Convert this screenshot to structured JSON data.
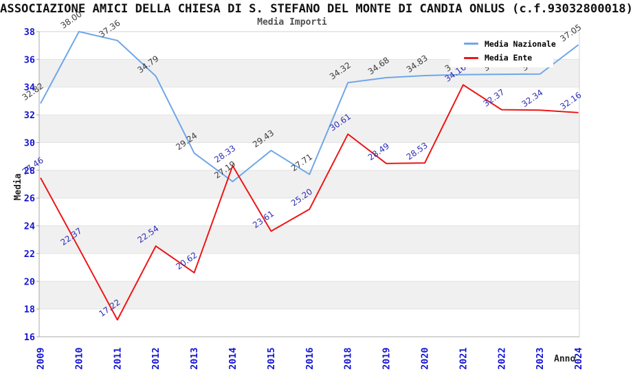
{
  "header": {
    "title": "ASSOCIAZIONE AMICI DELLA CHIESA DI S. STEFANO DEL MONTE DI CANDIA ONLUS (c.f.93032800018)",
    "subtitle": "Media Importi"
  },
  "axes": {
    "y_title": "Media",
    "x_title": "Anno",
    "y_ticks": [
      16,
      18,
      20,
      22,
      24,
      26,
      28,
      30,
      32,
      34,
      36,
      38
    ],
    "tick_label_color": "#1414D2"
  },
  "chart_data": {
    "type": "line",
    "title": "Media Importi",
    "xlabel": "Anno",
    "ylabel": "Media",
    "ylim": [
      16,
      38
    ],
    "ytick_step": 2,
    "grid": "horizontal gridlines every 2 units with alternating gray bands",
    "gray_bands": [
      [
        18,
        20
      ],
      [
        22,
        24
      ],
      [
        26,
        28
      ],
      [
        30,
        32
      ],
      [
        34,
        36
      ]
    ],
    "band_color": "#F0F0F0",
    "legend_position": "top-right",
    "categories": [
      "2009",
      "2010",
      "2011",
      "2012",
      "2013",
      "2014",
      "2015",
      "2016",
      "2018",
      "2019",
      "2020",
      "2021",
      "2022",
      "2023",
      "2024"
    ],
    "series": [
      {
        "name": "Media Nazionale",
        "color": "#6EA6E8",
        "label_color": "#3C3C3C",
        "values": [
          32.82,
          38.0,
          37.36,
          34.79,
          29.24,
          27.19,
          29.43,
          27.71,
          34.32,
          34.68,
          34.83,
          34.9,
          34.92,
          34.94,
          37.05
        ]
      },
      {
        "name": "Media Ente",
        "color": "#ED1515",
        "label_color": "#2E2EB8",
        "values": [
          27.46,
          22.37,
          17.22,
          22.54,
          20.62,
          28.33,
          23.61,
          25.2,
          30.61,
          28.49,
          28.53,
          34.16,
          32.37,
          32.34,
          32.16
        ]
      }
    ]
  }
}
